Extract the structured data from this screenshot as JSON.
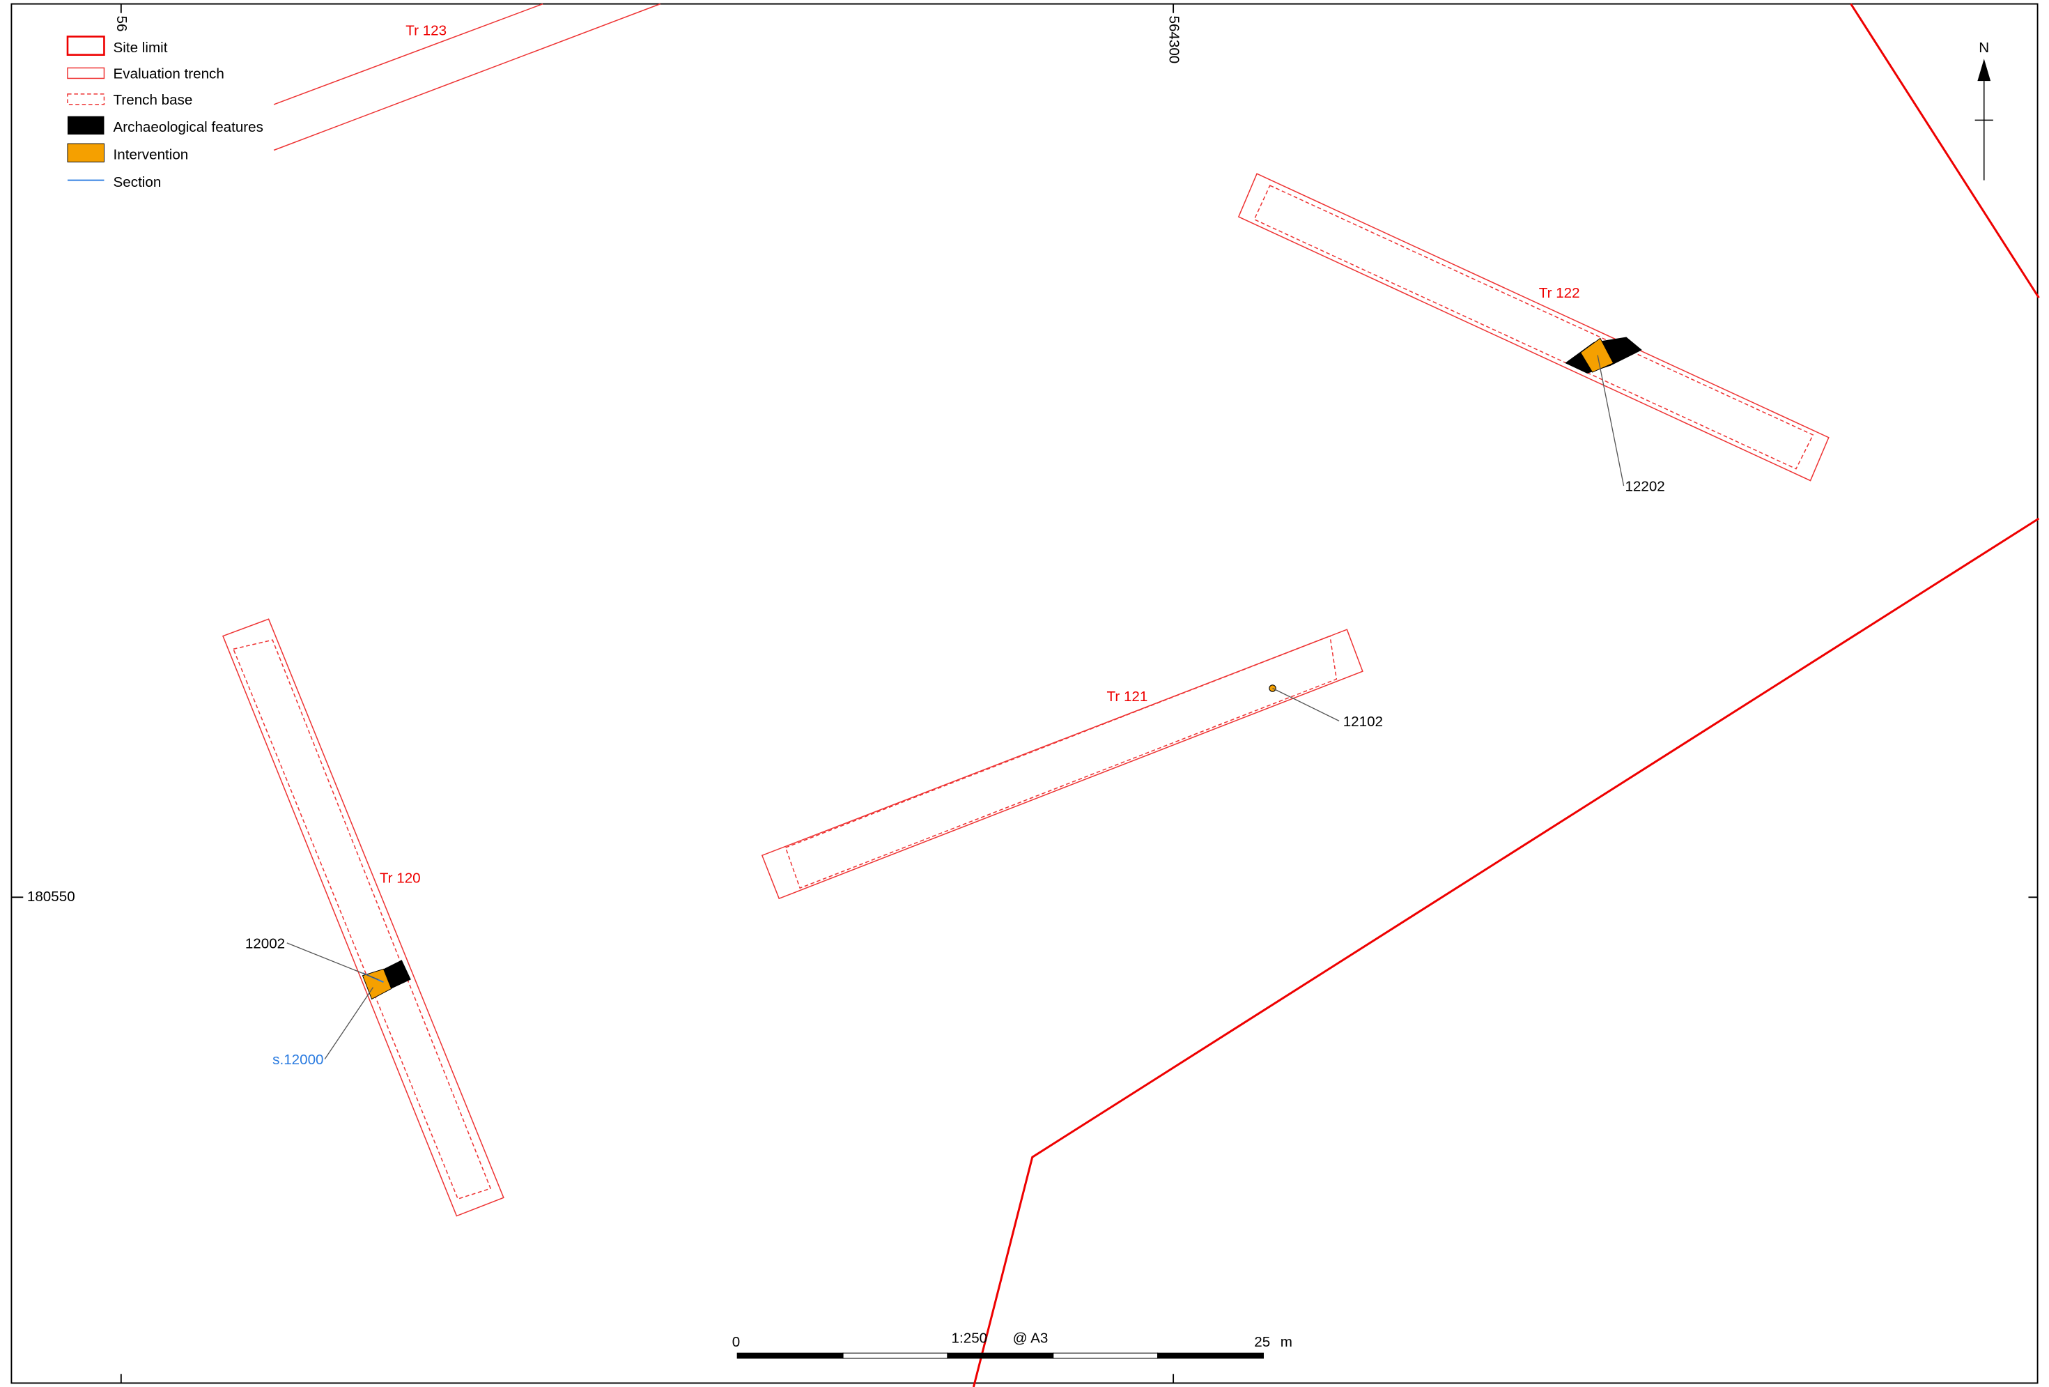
{
  "legend": [
    {
      "label": "Site limit"
    },
    {
      "label": "Evaluation trench"
    },
    {
      "label": "Trench base"
    },
    {
      "label": "Archaeological features"
    },
    {
      "label": "Intervention"
    },
    {
      "label": "Section"
    }
  ],
  "trenches": [
    "Tr 123",
    "Tr 122",
    "Tr 121",
    "Tr 120"
  ],
  "features": [
    "12202",
    "12102",
    "12002"
  ],
  "section": "s.12000",
  "grid": {
    "easting_left": "56",
    "easting": "564300",
    "northing": "180550"
  },
  "north": "N",
  "scale": {
    "start": "0",
    "ratio": "1:250",
    "paper": "@ A3",
    "end": "25",
    "unit": "m"
  }
}
